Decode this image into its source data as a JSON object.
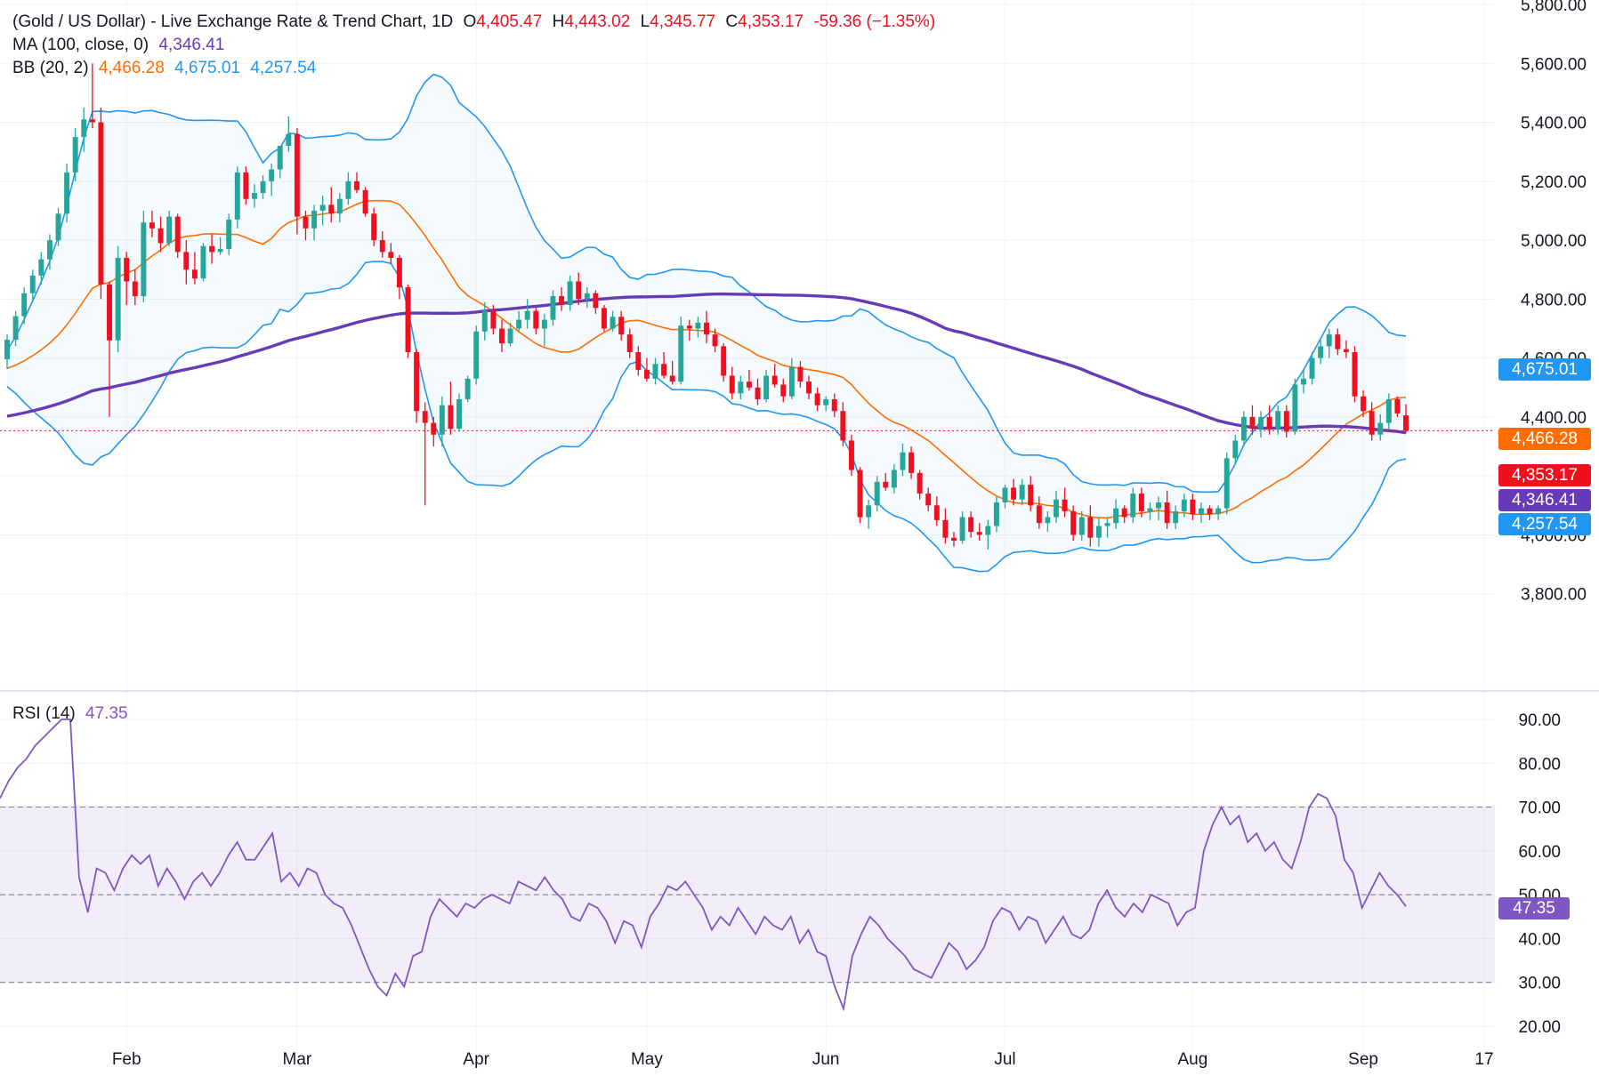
{
  "header": {
    "title": "(Gold / US Dollar) - Live Exchange Rate & Trend Chart, 1D",
    "ohlc": {
      "o_label": "O",
      "o_value": "4,405.47",
      "h_label": "H",
      "h_value": "4,443.02",
      "l_label": "L",
      "l_value": "4,345.77",
      "c_label": "C",
      "c_value": "4,353.17",
      "change": "-59.36 (−1.35%)"
    }
  },
  "indicators": {
    "ma": {
      "label": "MA (100, close, 0)",
      "value": "4,346.41",
      "color": "#673ab7"
    },
    "bb": {
      "label": "BB (20, 2)",
      "basis": "4,466.28",
      "upper": "4,675.01",
      "lower": "4,257.54",
      "basis_color": "#ff6d00",
      "band_color": "#2196f3"
    },
    "rsi": {
      "label": "RSI (14)",
      "value": "47.35",
      "color": "#7e57c2"
    }
  },
  "badges": {
    "bb_upper": "4,675.01",
    "bb_basis": "4,466.28",
    "last_price": "4,353.17",
    "ma_value": "4,346.41",
    "bb_lower": "4,257.54",
    "rsi_value": "47.35"
  },
  "colors": {
    "up": "#26a69a",
    "down": "#ef0f1f",
    "ma": "#673ab7",
    "bb_basis": "#ff6d00",
    "bb_band": "#2196f3",
    "rsi": "#7e57c2",
    "last_price": "#ef0f1f"
  },
  "chart_data": [
    {
      "type": "candlestick",
      "title": "(Gold / US Dollar) - Live Exchange Rate & Trend Chart, 1D",
      "ylim": [
        3700,
        5800
      ],
      "y_ticks": [
        "3,800.00",
        "4,000.00",
        "4,200.00",
        "4,400.00",
        "4,600.00",
        "4,800.00",
        "5,000.00",
        "5,200.00",
        "5,400.00",
        "5,600.00",
        "5,800.00"
      ],
      "y_tick_values": [
        3800,
        4000,
        4200,
        4400,
        4600,
        4800,
        5000,
        5200,
        5400,
        5600,
        5800
      ],
      "x_ticks": [
        "Feb",
        "Mar",
        "Apr",
        "May",
        "Jun",
        "Jul",
        "Aug",
        "Sep",
        "17"
      ],
      "grid": true,
      "last_price": 4353.17,
      "candles_ohlc_estimated": [
        [
          4596,
          4681,
          4563,
          4662
        ],
        [
          4662,
          4760,
          4640,
          4742
        ],
        [
          4742,
          4840,
          4715,
          4820
        ],
        [
          4820,
          4900,
          4790,
          4880
        ],
        [
          4880,
          4960,
          4850,
          4935
        ],
        [
          4935,
          5020,
          4900,
          5000
        ],
        [
          5000,
          5110,
          4980,
          5090
        ],
        [
          5090,
          5260,
          5060,
          5230
        ],
        [
          5230,
          5380,
          5200,
          5350
        ],
        [
          5350,
          5450,
          5300,
          5410
        ],
        [
          5410,
          5600,
          5380,
          5400
        ],
        [
          5400,
          5450,
          4800,
          4850
        ],
        [
          4850,
          4860,
          4400,
          4660
        ],
        [
          4660,
          4980,
          4620,
          4940
        ],
        [
          4940,
          4960,
          4780,
          4860
        ],
        [
          4860,
          4900,
          4780,
          4810
        ],
        [
          4810,
          5100,
          4790,
          5060
        ],
        [
          5060,
          5100,
          5010,
          5040
        ],
        [
          5040,
          5080,
          4960,
          4990
        ],
        [
          4990,
          5100,
          4980,
          5080
        ],
        [
          5080,
          5090,
          4940,
          4960
        ],
        [
          4960,
          5000,
          4850,
          4900
        ],
        [
          4900,
          4960,
          4850,
          4870
        ],
        [
          4870,
          4990,
          4860,
          4980
        ],
        [
          4980,
          5020,
          4920,
          4960
        ],
        [
          4960,
          5010,
          4950,
          4970
        ],
        [
          4970,
          5090,
          4950,
          5070
        ],
        [
          5070,
          5250,
          5040,
          5230
        ],
        [
          5230,
          5250,
          5120,
          5140
        ],
        [
          5140,
          5190,
          5110,
          5160
        ],
        [
          5160,
          5220,
          5140,
          5200
        ],
        [
          5200,
          5260,
          5150,
          5240
        ],
        [
          5240,
          5290,
          5210,
          5320
        ],
        [
          5320,
          5420,
          5300,
          5360
        ],
        [
          5360,
          5380,
          5020,
          5080
        ],
        [
          5080,
          5100,
          5000,
          5040
        ],
        [
          5040,
          5120,
          5000,
          5100
        ],
        [
          5100,
          5150,
          5050,
          5120
        ],
        [
          5120,
          5180,
          5060,
          5090
        ],
        [
          5090,
          5160,
          5060,
          5140
        ],
        [
          5140,
          5230,
          5120,
          5200
        ],
        [
          5200,
          5230,
          5160,
          5170
        ],
        [
          5170,
          5180,
          5080,
          5090
        ],
        [
          5090,
          5110,
          4980,
          5000
        ],
        [
          5000,
          5030,
          4940,
          4960
        ],
        [
          4960,
          4990,
          4920,
          4940
        ],
        [
          4940,
          4950,
          4800,
          4840
        ],
        [
          4840,
          4850,
          4600,
          4620
        ],
        [
          4620,
          4630,
          4380,
          4420
        ],
        [
          4420,
          4450,
          4100,
          4380
        ],
        [
          4380,
          4400,
          4300,
          4340
        ],
        [
          4340,
          4470,
          4300,
          4440
        ],
        [
          4440,
          4520,
          4340,
          4360
        ],
        [
          4360,
          4480,
          4350,
          4460
        ],
        [
          4460,
          4540,
          4450,
          4530
        ],
        [
          4530,
          4710,
          4510,
          4690
        ],
        [
          4690,
          4790,
          4660,
          4760
        ],
        [
          4760,
          4780,
          4680,
          4700
        ],
        [
          4700,
          4730,
          4620,
          4650
        ],
        [
          4650,
          4720,
          4640,
          4700
        ],
        [
          4700,
          4760,
          4690,
          4730
        ],
        [
          4730,
          4800,
          4700,
          4760
        ],
        [
          4760,
          4770,
          4680,
          4700
        ],
        [
          4700,
          4750,
          4640,
          4730
        ],
        [
          4730,
          4830,
          4710,
          4810
        ],
        [
          4810,
          4840,
          4760,
          4780
        ],
        [
          4780,
          4880,
          4760,
          4860
        ],
        [
          4860,
          4890,
          4780,
          4800
        ],
        [
          4800,
          4840,
          4770,
          4820
        ],
        [
          4820,
          4830,
          4750,
          4770
        ],
        [
          4770,
          4780,
          4690,
          4700
        ],
        [
          4700,
          4760,
          4690,
          4740
        ],
        [
          4740,
          4760,
          4660,
          4680
        ],
        [
          4680,
          4700,
          4600,
          4620
        ],
        [
          4620,
          4640,
          4540,
          4560
        ],
        [
          4560,
          4600,
          4520,
          4530
        ],
        [
          4530,
          4600,
          4510,
          4580
        ],
        [
          4580,
          4620,
          4530,
          4540
        ],
        [
          4540,
          4590,
          4510,
          4520
        ],
        [
          4520,
          4740,
          4510,
          4710
        ],
        [
          4710,
          4730,
          4660,
          4700
        ],
        [
          4700,
          4740,
          4670,
          4720
        ],
        [
          4720,
          4760,
          4650,
          4680
        ],
        [
          4680,
          4700,
          4620,
          4640
        ],
        [
          4640,
          4650,
          4520,
          4540
        ],
        [
          4540,
          4570,
          4460,
          4480
        ],
        [
          4480,
          4540,
          4460,
          4520
        ],
        [
          4520,
          4560,
          4490,
          4500
        ],
        [
          4500,
          4530,
          4440,
          4460
        ],
        [
          4460,
          4560,
          4450,
          4540
        ],
        [
          4540,
          4580,
          4500,
          4510
        ],
        [
          4510,
          4530,
          4450,
          4470
        ],
        [
          4470,
          4600,
          4460,
          4570
        ],
        [
          4570,
          4590,
          4500,
          4520
        ],
        [
          4520,
          4540,
          4460,
          4480
        ],
        [
          4480,
          4500,
          4420,
          4440
        ],
        [
          4440,
          4470,
          4420,
          4460
        ],
        [
          4460,
          4480,
          4400,
          4420
        ],
        [
          4420,
          4450,
          4300,
          4320
        ],
        [
          4320,
          4340,
          4200,
          4220
        ],
        [
          4220,
          4230,
          4040,
          4060
        ],
        [
          4060,
          4120,
          4020,
          4100
        ],
        [
          4100,
          4200,
          4080,
          4180
        ],
        [
          4180,
          4210,
          4150,
          4160
        ],
        [
          4160,
          4240,
          4140,
          4220
        ],
        [
          4220,
          4310,
          4200,
          4280
        ],
        [
          4280,
          4300,
          4190,
          4210
        ],
        [
          4210,
          4220,
          4120,
          4140
        ],
        [
          4140,
          4160,
          4080,
          4100
        ],
        [
          4100,
          4130,
          4030,
          4050
        ],
        [
          4050,
          4090,
          3970,
          3990
        ],
        [
          3990,
          4010,
          3960,
          3980
        ],
        [
          3980,
          4080,
          3970,
          4060
        ],
        [
          4060,
          4080,
          3990,
          4010
        ],
        [
          4010,
          4040,
          3980,
          4000
        ],
        [
          4000,
          4050,
          3950,
          4030
        ],
        [
          4030,
          4130,
          4010,
          4110
        ],
        [
          4110,
          4170,
          4090,
          4160
        ],
        [
          4160,
          4190,
          4100,
          4120
        ],
        [
          4120,
          4190,
          4100,
          4170
        ],
        [
          4170,
          4200,
          4080,
          4100
        ],
        [
          4100,
          4130,
          4020,
          4040
        ],
        [
          4040,
          4080,
          4010,
          4060
        ],
        [
          4060,
          4150,
          4040,
          4120
        ],
        [
          4120,
          4160,
          4060,
          4080
        ],
        [
          4080,
          4100,
          3980,
          4000
        ],
        [
          4000,
          4080,
          3980,
          4060
        ],
        [
          4060,
          4100,
          3960,
          3990
        ],
        [
          3990,
          4060,
          3960,
          4030
        ],
        [
          4030,
          4060,
          3990,
          4040
        ],
        [
          4040,
          4120,
          4020,
          4090
        ],
        [
          4090,
          4100,
          4040,
          4060
        ],
        [
          4060,
          4160,
          4040,
          4140
        ],
        [
          4140,
          4160,
          4060,
          4080
        ],
        [
          4080,
          4110,
          4050,
          4090
        ],
        [
          4090,
          4130,
          4050,
          4110
        ],
        [
          4110,
          4150,
          4020,
          4040
        ],
        [
          4040,
          4100,
          4020,
          4080
        ],
        [
          4080,
          4140,
          4060,
          4120
        ],
        [
          4120,
          4140,
          4050,
          4070
        ],
        [
          4070,
          4110,
          4040,
          4090
        ],
        [
          4090,
          4100,
          4050,
          4070
        ],
        [
          4070,
          4100,
          4050,
          4090
        ],
        [
          4090,
          4280,
          4070,
          4260
        ],
        [
          4260,
          4340,
          4240,
          4320
        ],
        [
          4320,
          4420,
          4300,
          4400
        ],
        [
          4400,
          4440,
          4340,
          4360
        ],
        [
          4360,
          4420,
          4330,
          4400
        ],
        [
          4400,
          4440,
          4340,
          4360
        ],
        [
          4360,
          4440,
          4340,
          4420
        ],
        [
          4420,
          4440,
          4330,
          4350
        ],
        [
          4350,
          4530,
          4340,
          4510
        ],
        [
          4510,
          4560,
          4480,
          4530
        ],
        [
          4530,
          4620,
          4510,
          4600
        ],
        [
          4600,
          4660,
          4580,
          4640
        ],
        [
          4640,
          4700,
          4600,
          4680
        ],
        [
          4680,
          4700,
          4610,
          4630
        ],
        [
          4630,
          4660,
          4600,
          4620
        ],
        [
          4620,
          4640,
          4450,
          4470
        ],
        [
          4470,
          4490,
          4400,
          4420
        ],
        [
          4420,
          4450,
          4320,
          4340
        ],
        [
          4340,
          4410,
          4320,
          4380
        ],
        [
          4380,
          4480,
          4360,
          4460
        ],
        [
          4460,
          4470,
          4400,
          4412
        ],
        [
          4405.47,
          4443.02,
          4345.77,
          4353.17
        ]
      ],
      "series": [
        {
          "name": "MA (100, close, 0)",
          "last": 4346.41
        },
        {
          "name": "BB (20, 2)",
          "basis_last": 4466.28,
          "upper_last": 4675.01,
          "lower_last": 4257.54
        }
      ]
    },
    {
      "type": "line",
      "title": "RSI (14)",
      "ylim": [
        17,
        97
      ],
      "y_ticks": [
        "20.00",
        "30.00",
        "40.00",
        "50.00",
        "60.00",
        "70.00",
        "80.00",
        "90.00"
      ],
      "y_tick_values": [
        20,
        30,
        40,
        50,
        60,
        70,
        80,
        90
      ],
      "bands": [
        30,
        70
      ],
      "middle_line": 50,
      "last": 47.35,
      "values_estimated": [
        72,
        76,
        79,
        81,
        84,
        86,
        88,
        90,
        90,
        54,
        46,
        56,
        55,
        51,
        56,
        59,
        57,
        59,
        52,
        56,
        53,
        49,
        53,
        55,
        52,
        55,
        59,
        62,
        58,
        58,
        61,
        64,
        53,
        55,
        52,
        56,
        55,
        50,
        48,
        47,
        43,
        38,
        33,
        29,
        27,
        32,
        29,
        36,
        37,
        45,
        49,
        47,
        45,
        48,
        47,
        49,
        50,
        49,
        48,
        53,
        52,
        51,
        54,
        51,
        49,
        45,
        44,
        48,
        47,
        44,
        39,
        44,
        43,
        38,
        45,
        48,
        52,
        51,
        53,
        50,
        47,
        42,
        45,
        43,
        47,
        44,
        41,
        45,
        43,
        42,
        45,
        39,
        42,
        37,
        36,
        29,
        24,
        36,
        41,
        45,
        43,
        40,
        38,
        36,
        33,
        32,
        31,
        35,
        39,
        37,
        33,
        35,
        38,
        44,
        47,
        46,
        42,
        45,
        44,
        39,
        42,
        45,
        41,
        40,
        42,
        48,
        51,
        47,
        45,
        48,
        46,
        50,
        49,
        48,
        43,
        46,
        47,
        60,
        66,
        70,
        66,
        68,
        62,
        64,
        60,
        62,
        58,
        56,
        62,
        70,
        73,
        72,
        68,
        58,
        55,
        47,
        51,
        55,
        52,
        50,
        47.35
      ]
    }
  ]
}
